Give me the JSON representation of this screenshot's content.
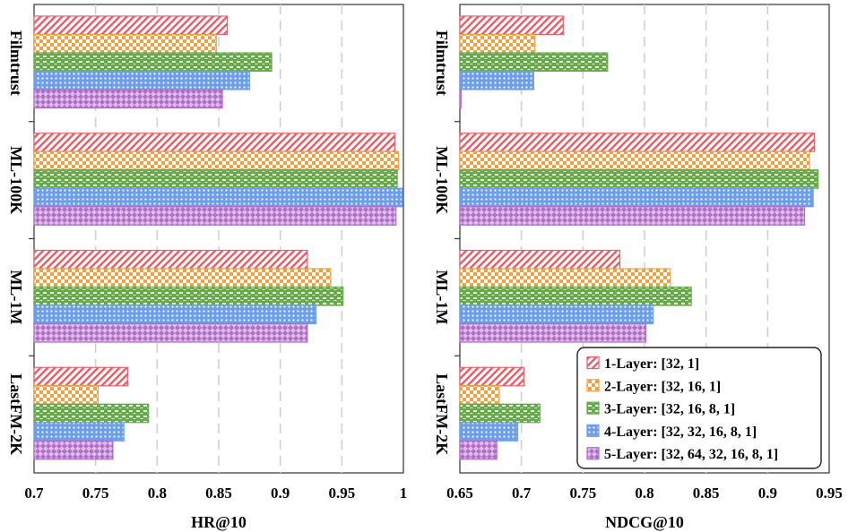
{
  "chart_data": [
    {
      "type": "bar",
      "orientation": "horizontal",
      "xlabel": "HR@10",
      "xlim": [
        0.7,
        1.0
      ],
      "xticks": [
        "0.7",
        "0.75",
        "0.8",
        "0.85",
        "0.9",
        "0.95",
        "1"
      ],
      "categories": [
        "Filmtrust",
        "ML-100K",
        "ML-1M",
        "LastFM-2K"
      ],
      "grid": "vertical dashed",
      "series": [
        {
          "name": "1-Layer: [32, 1]",
          "values": [
            0.857,
            0.993,
            0.922,
            0.776
          ]
        },
        {
          "name": "2-Layer: [32, 16, 1]",
          "values": [
            0.848,
            0.996,
            0.941,
            0.752
          ]
        },
        {
          "name": "3-Layer: [32, 16, 8, 1]",
          "values": [
            0.893,
            0.995,
            0.951,
            0.793
          ]
        },
        {
          "name": "4-Layer: [32, 32, 16, 8, 1]",
          "values": [
            0.875,
            0.999,
            0.929,
            0.773
          ]
        },
        {
          "name": "5-Layer: [32, 64, 32, 16, 8, 1]",
          "values": [
            0.853,
            0.994,
            0.922,
            0.764
          ]
        }
      ]
    },
    {
      "type": "bar",
      "orientation": "horizontal",
      "xlabel": "NDCG@10",
      "xlim": [
        0.65,
        0.95
      ],
      "xticks": [
        "0.65",
        "0.7",
        "0.75",
        "0.8",
        "0.85",
        "0.9",
        "0.95"
      ],
      "categories": [
        "Filmtrust",
        "ML-100K",
        "ML-1M",
        "LastFM-2K"
      ],
      "grid": "vertical dashed",
      "series": [
        {
          "name": "1-Layer: [32, 1]",
          "values": [
            0.734,
            0.938,
            0.78,
            0.702
          ]
        },
        {
          "name": "2-Layer: [32, 16, 1]",
          "values": [
            0.711,
            0.934,
            0.821,
            0.682
          ]
        },
        {
          "name": "3-Layer: [32, 16, 8, 1]",
          "values": [
            0.77,
            0.941,
            0.838,
            0.715
          ]
        },
        {
          "name": "4-Layer: [32, 32, 16, 8, 1]",
          "values": [
            0.71,
            0.937,
            0.807,
            0.697
          ]
        },
        {
          "name": "5-Layer: [32, 64, 32, 16, 8, 1]",
          "values": [
            0.651,
            0.93,
            0.801,
            0.68
          ]
        }
      ]
    }
  ],
  "legend": {
    "placement": "bottom-right",
    "items": [
      {
        "label": "1-Layer: [32, 1]",
        "color": "#e8616a",
        "pattern": "diagonal-stripes"
      },
      {
        "label": "2-Layer: [32, 16, 1]",
        "color": "#f0a040",
        "pattern": "checker"
      },
      {
        "label": "3-Layer: [32, 16, 8, 1]",
        "color": "#6aa84f",
        "pattern": "horizontal-dashes"
      },
      {
        "label": "4-Layer: [32, 32, 16, 8, 1]",
        "color": "#6d9eeb",
        "pattern": "dots"
      },
      {
        "label": "5-Layer: [32, 64, 32, 16, 8, 1]",
        "color": "#b06cc8",
        "pattern": "diamond-grid"
      }
    ]
  }
}
